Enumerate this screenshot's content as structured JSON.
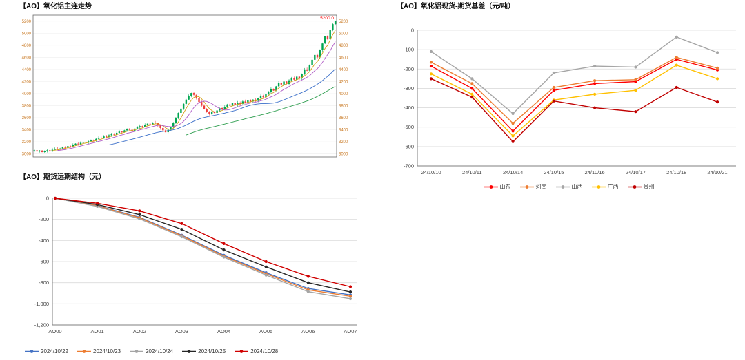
{
  "chart_data": [
    {
      "id": "candle",
      "type": "candlestick",
      "title": "【AO】氧化铝主连走势",
      "ylim": [
        2950,
        5300
      ],
      "yticks": [
        3000,
        3200,
        3400,
        3600,
        3800,
        4000,
        4200,
        4400,
        4600,
        4800,
        5000,
        5200
      ],
      "ytick_labels": [
        "3000",
        "3200",
        "3400",
        "3600",
        "3800",
        "4000",
        "4200",
        "4400",
        "4600",
        "4800",
        "5000",
        "5200"
      ],
      "last_price_label": "5200.0",
      "up_color": "#00a651",
      "down_color": "#ef3b3b",
      "axis_label_color": "#c8761e",
      "ma": [
        {
          "window": 5,
          "color": "#d4a017"
        },
        {
          "window": 10,
          "color": "#b05bc6"
        },
        {
          "window": 30,
          "color": "#3b6fc9"
        },
        {
          "window": 60,
          "color": "#2e9e4f"
        }
      ],
      "closes": [
        3060,
        3040,
        3055,
        3030,
        3045,
        3060,
        3050,
        3070,
        3085,
        3075,
        3090,
        3110,
        3105,
        3130,
        3125,
        3150,
        3170,
        3160,
        3185,
        3200,
        3190,
        3210,
        3230,
        3220,
        3250,
        3270,
        3260,
        3290,
        3280,
        3310,
        3330,
        3320,
        3350,
        3370,
        3360,
        3390,
        3410,
        3400,
        3380,
        3420,
        3440,
        3460,
        3450,
        3480,
        3500,
        3490,
        3520,
        3510,
        3470,
        3430,
        3390,
        3360,
        3400,
        3450,
        3520,
        3600,
        3680,
        3750,
        3830,
        3900,
        3960,
        4010,
        3980,
        3920,
        3860,
        3800,
        3740,
        3700,
        3660,
        3700,
        3680,
        3720,
        3760,
        3740,
        3780,
        3820,
        3800,
        3840,
        3810,
        3850,
        3830,
        3870,
        3850,
        3890,
        3870,
        3900,
        3880,
        3920,
        3960,
        3940,
        3990,
        4030,
        4080,
        4050,
        4120,
        4180,
        4150,
        4200,
        4160,
        4220,
        4260,
        4230,
        4280,
        4250,
        4320,
        4400,
        4380,
        4470,
        4560,
        4640,
        4600,
        4720,
        4830,
        4950,
        4900,
        5050,
        5150,
        5200
      ]
    },
    {
      "id": "basis",
      "type": "line",
      "title": "【AO】氧化铝现货-期货基差（元/吨）",
      "categories": [
        "24/10/10",
        "24/10/11",
        "24/10/14",
        "24/10/15",
        "24/10/16",
        "24/10/17",
        "24/10/18",
        "24/10/21"
      ],
      "ylim": [
        -700,
        0
      ],
      "yticks": [
        0,
        -100,
        -200,
        -300,
        -400,
        -500,
        -600,
        -700
      ],
      "ytick_labels": [
        "0",
        "-100",
        "-200",
        "-300",
        "-400",
        "-500",
        "-600",
        "-700"
      ],
      "legend_position": "bottom-center",
      "grid": true,
      "series": [
        {
          "name": "山东",
          "color": "#ff0000",
          "values": [
            -185,
            -300,
            -520,
            -310,
            -275,
            -265,
            -150,
            -205
          ]
        },
        {
          "name": "河南",
          "color": "#ed7d31",
          "values": [
            -165,
            -275,
            -480,
            -295,
            -260,
            -255,
            -140,
            -195
          ]
        },
        {
          "name": "山西",
          "color": "#a6a6a6",
          "values": [
            -110,
            -250,
            -430,
            -220,
            -185,
            -190,
            -35,
            -115
          ]
        },
        {
          "name": "广西",
          "color": "#ffc000",
          "values": [
            -225,
            -330,
            -545,
            -360,
            -330,
            -310,
            -180,
            -250
          ]
        },
        {
          "name": "贵州",
          "color": "#c00000",
          "values": [
            -250,
            -345,
            -575,
            -365,
            -400,
            -420,
            -295,
            -370
          ]
        }
      ]
    },
    {
      "id": "forward",
      "type": "line",
      "title": "【AO】期货远期结构（元）",
      "categories": [
        "AO00",
        "AO01",
        "AO02",
        "AO03",
        "AO04",
        "AO05",
        "AO06",
        "AO07"
      ],
      "ylim": [
        -1200,
        0
      ],
      "yticks": [
        0,
        -200,
        -400,
        -600,
        -800,
        -1000,
        -1200
      ],
      "ytick_labels": [
        "0",
        "-200",
        "-400",
        "-600",
        "-800",
        "-1,000",
        "-1,200"
      ],
      "legend_position": "bottom-left",
      "grid": true,
      "series": [
        {
          "name": "2024/10/22",
          "color": "#4472c4",
          "values": [
            0,
            -70,
            -180,
            -350,
            -540,
            -705,
            -855,
            -915
          ]
        },
        {
          "name": "2024/10/23",
          "color": "#ed7d31",
          "values": [
            0,
            -72,
            -185,
            -355,
            -548,
            -715,
            -868,
            -928
          ]
        },
        {
          "name": "2024/10/24",
          "color": "#a5a5a5",
          "values": [
            0,
            -78,
            -195,
            -365,
            -558,
            -728,
            -885,
            -952
          ]
        },
        {
          "name": "2024/10/25",
          "color": "#262626",
          "values": [
            0,
            -60,
            -155,
            -295,
            -490,
            -650,
            -800,
            -888
          ]
        },
        {
          "name": "2024/10/28",
          "color": "#d00000",
          "values": [
            0,
            -48,
            -120,
            -240,
            -430,
            -600,
            -740,
            -838
          ]
        }
      ]
    }
  ]
}
